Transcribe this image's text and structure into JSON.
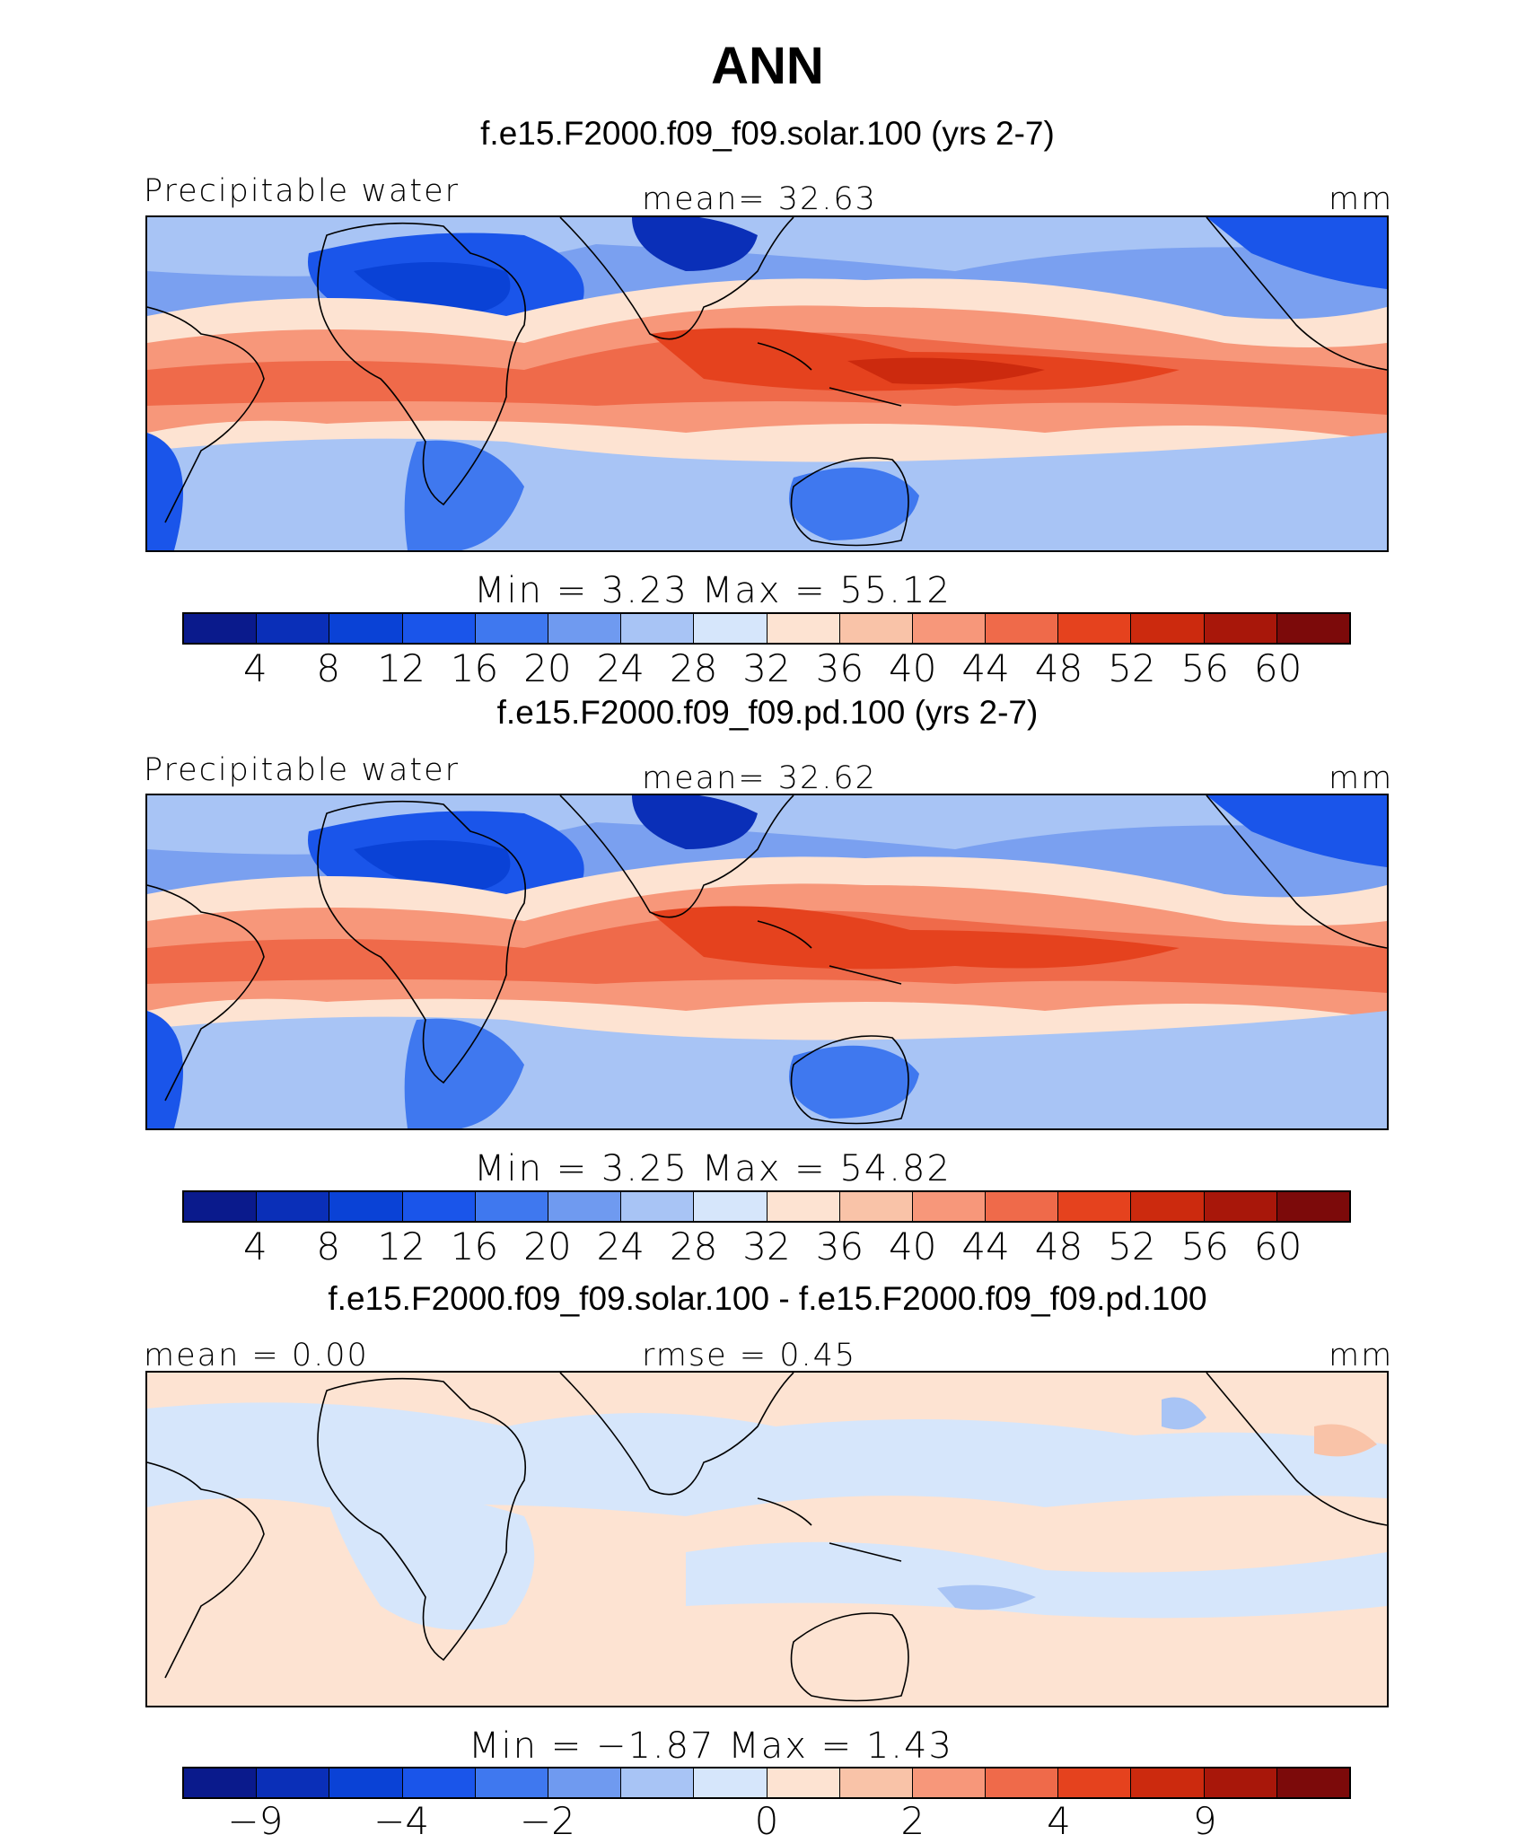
{
  "title": "ANN",
  "colors": {
    "abs_scale": [
      "#0a1a8c",
      "#0a2fb8",
      "#0a42d6",
      "#1a55ea",
      "#3f78ef",
      "#6f9af0",
      "#a8c4f5",
      "#d6e6fb",
      "#fde3d2",
      "#f9c3a8",
      "#f7977a",
      "#ef6a4a",
      "#e5421e",
      "#cc2a0e",
      "#a8170a",
      "#7c0a0a"
    ],
    "diff_scale": [
      "#0a1a8c",
      "#0a2fb8",
      "#0a42d6",
      "#1a55ea",
      "#3f78ef",
      "#6f9af0",
      "#a8c4f5",
      "#d6e6fb",
      "#fde3d2",
      "#f9c3a8",
      "#f7977a",
      "#ef6a4a",
      "#e5421e",
      "#cc2a0e",
      "#a8170a",
      "#7c0a0a"
    ]
  },
  "panels": [
    {
      "subtitle": "f.e15.F2000.f09_f09.solar.100 (yrs 2-7)",
      "left_label": "Precipitable water",
      "center_label": "mean=   32.63",
      "right_label": "mm",
      "minmax": "Min  =     3.23  Max  =    55.12",
      "ticks": [
        "4",
        "8",
        "12",
        "16",
        "20",
        "24",
        "28",
        "32",
        "36",
        "40",
        "44",
        "48",
        "52",
        "56",
        "60"
      ],
      "kind": "abs"
    },
    {
      "subtitle": "f.e15.F2000.f09_f09.pd.100 (yrs 2-7)",
      "left_label": "Precipitable water",
      "center_label": "mean=   32.62",
      "right_label": "mm",
      "minmax": "Min  =     3.25  Max  =    54.82",
      "ticks": [
        "4",
        "8",
        "12",
        "16",
        "20",
        "24",
        "28",
        "32",
        "36",
        "40",
        "44",
        "48",
        "52",
        "56",
        "60"
      ],
      "kind": "abs"
    },
    {
      "subtitle": "f.e15.F2000.f09_f09.solar.100 - f.e15.F2000.f09_f09.pd.100",
      "left_label": "mean =    0.00",
      "center_label": "rmse =    0.45",
      "right_label": "mm",
      "minmax": "Min  =   −1.87  Max  =     1.43",
      "ticks": [
        "−9",
        "−4",
        "−2",
        "0",
        "2",
        "4",
        "9"
      ],
      "kind": "diff"
    }
  ]
}
